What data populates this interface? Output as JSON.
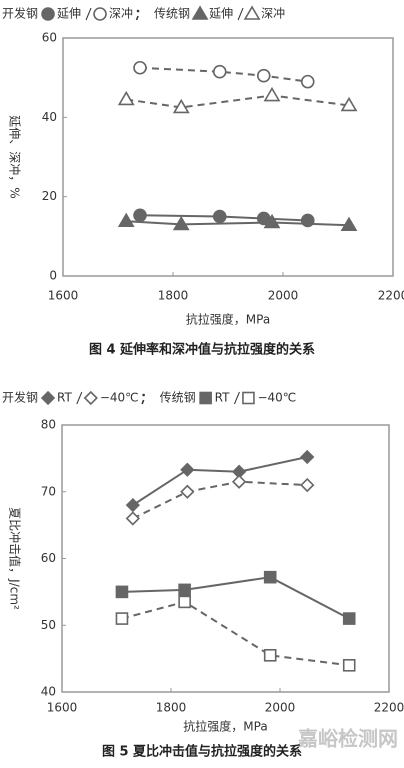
{
  "chart_data": [
    {
      "type": "line",
      "caption": "图 4  延伸率和深冲值与抗拉强度的关系",
      "xlabel": "抗拉强度，MPa",
      "ylabel": "延伸、深冲，%",
      "legend_groups": [
        "开发钢",
        "传统钢"
      ],
      "xlim": [
        1600,
        2200
      ],
      "xticks": [
        1600,
        1800,
        2000,
        2200
      ],
      "ylim": [
        0,
        60
      ],
      "yticks": [
        0,
        20,
        40,
        60
      ],
      "series": [
        {
          "name": "延伸",
          "color": "#666666",
          "marker": "circle",
          "filled": true,
          "line_style": "solid",
          "x": [
            1740,
            1885,
            1965,
            2045
          ],
          "values": [
            15.3,
            15,
            14.5,
            14
          ]
        },
        {
          "name": "深冲",
          "color": "#666666",
          "marker": "circle",
          "filled": false,
          "line_style": "dashed",
          "x": [
            1740,
            1885,
            1965,
            2045
          ],
          "values": [
            52.5,
            51.5,
            50.5,
            49
          ]
        },
        {
          "name": "延伸",
          "color": "#666666",
          "marker": "triangle",
          "filled": true,
          "line_style": "solid",
          "x": [
            1715,
            1815,
            1980,
            2120
          ],
          "values": [
            13.8,
            13,
            13.5,
            12.8
          ]
        },
        {
          "name": "深冲",
          "color": "#666666",
          "marker": "triangle",
          "filled": false,
          "line_style": "dashed",
          "x": [
            1715,
            1815,
            1980,
            2120
          ],
          "values": [
            44.5,
            42.5,
            45.5,
            43
          ]
        }
      ]
    },
    {
      "type": "line",
      "caption": "图 5  夏比冲击值与抗拉强度的关系",
      "xlabel": "抗拉强度，MPa",
      "ylabel": "夏比冲击值，J/cm²",
      "legend_groups": [
        "开发钢",
        "传统钢"
      ],
      "xlim": [
        1600,
        2200
      ],
      "xticks": [
        1600,
        1800,
        2000,
        2200
      ],
      "ylim": [
        40,
        80
      ],
      "yticks": [
        40,
        50,
        60,
        70,
        80
      ],
      "series": [
        {
          "name": "RT",
          "color": "#666666",
          "marker": "diamond",
          "filled": true,
          "line_style": "solid",
          "x": [
            1730,
            1830,
            1925,
            2050
          ],
          "values": [
            68,
            73.3,
            73,
            75.2
          ]
        },
        {
          "name": "−40℃",
          "color": "#666666",
          "marker": "diamond",
          "filled": false,
          "line_style": "dashed",
          "x": [
            1730,
            1830,
            1925,
            2050
          ],
          "values": [
            66,
            70,
            71.5,
            71
          ]
        },
        {
          "name": "RT",
          "color": "#666666",
          "marker": "square",
          "filled": true,
          "line_style": "solid",
          "x": [
            1710,
            1825,
            1982,
            2127
          ],
          "values": [
            55,
            55.3,
            57.2,
            51
          ]
        },
        {
          "name": "−40℃",
          "color": "#666666",
          "marker": "square",
          "filled": false,
          "line_style": "dashed",
          "x": [
            1710,
            1825,
            1982,
            2127
          ],
          "values": [
            51,
            53.5,
            45.5,
            44
          ]
        }
      ]
    }
  ],
  "watermark": "嘉峪检测网"
}
